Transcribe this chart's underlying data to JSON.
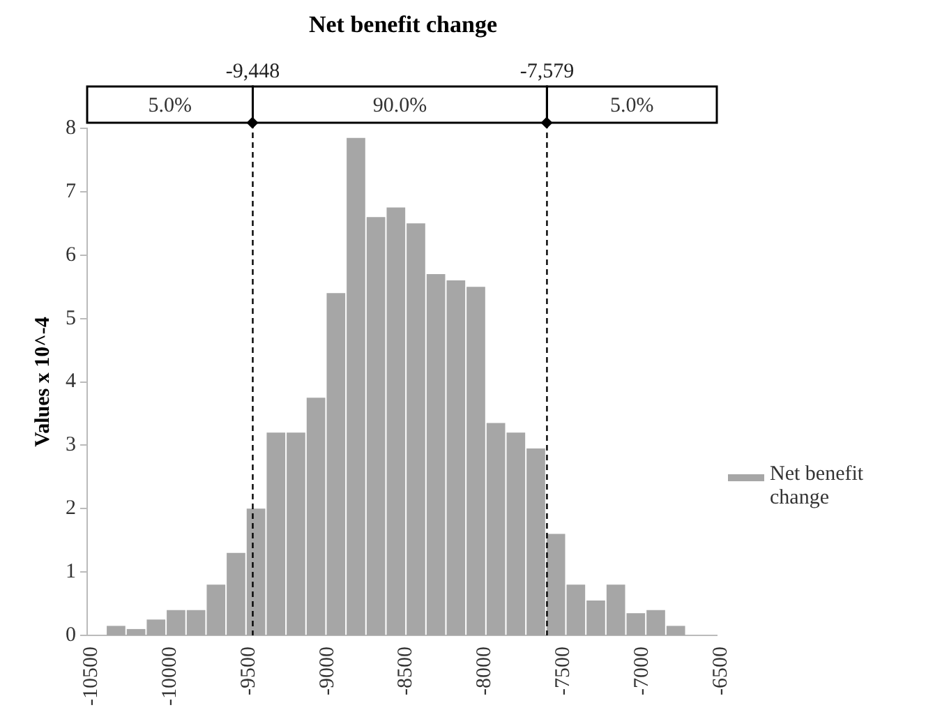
{
  "chart_data": {
    "type": "histogram",
    "title": "Net benefit change",
    "ylabel": "Values x 10^-4",
    "bins": [
      -10380,
      -10253,
      -10126,
      -9999,
      -9872,
      -9745,
      -9618,
      -9491,
      -9364,
      -9237,
      -9110,
      -8983,
      -8856,
      -8729,
      -8602,
      -8475,
      -8348,
      -8221,
      -8094,
      -7967,
      -7840,
      -7713,
      -7586,
      -7459,
      -7332,
      -7205,
      -7078,
      -6951,
      -6824,
      -6697
    ],
    "series": [
      {
        "name": "Net benefit change",
        "color": "#a6a6a6",
        "values": [
          0.15,
          0.1,
          0.25,
          0.4,
          0.4,
          0.8,
          1.3,
          2.0,
          3.2,
          3.2,
          3.75,
          5.4,
          7.85,
          6.6,
          6.75,
          6.5,
          5.7,
          5.6,
          5.5,
          3.35,
          3.2,
          2.95,
          1.6,
          0.8,
          0.55,
          0.8,
          0.35,
          0.4,
          0.15
        ]
      }
    ],
    "xlim": [
      -10500,
      -6500
    ],
    "xticks": [
      -10500,
      -10000,
      -9500,
      -9000,
      -8500,
      -8000,
      -7500,
      -7000,
      -6500
    ],
    "ylim": [
      0,
      8
    ],
    "yticks": [
      0,
      1,
      2,
      3,
      4,
      5,
      6,
      7,
      8
    ],
    "ref_lines": [
      {
        "axis": "x",
        "value": -9448,
        "label": "-9,448",
        "line_style": "dashed",
        "color": "#000000"
      },
      {
        "axis": "x",
        "value": -7579,
        "label": "-7,579",
        "line_style": "dashed",
        "color": "#000000"
      }
    ],
    "annotations": [
      "5.0%",
      "90.0%",
      "5.0%"
    ],
    "grid": false,
    "legend": "right"
  }
}
